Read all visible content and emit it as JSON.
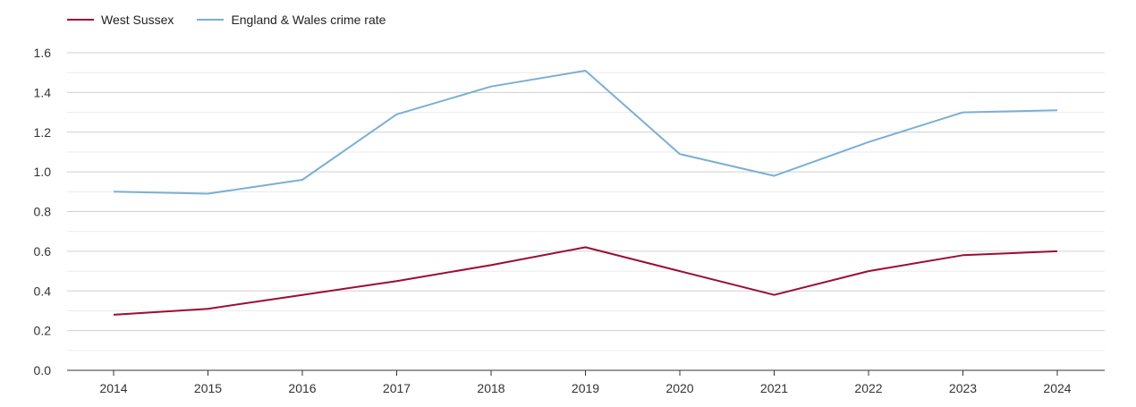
{
  "chart_data": {
    "type": "line",
    "title": "",
    "xlabel": "",
    "ylabel": "",
    "categories": [
      "2014",
      "2015",
      "2016",
      "2017",
      "2018",
      "2019",
      "2020",
      "2021",
      "2022",
      "2023",
      "2024"
    ],
    "ylim": [
      0,
      1.6
    ],
    "yticks": [
      "0.0",
      "0.2",
      "0.4",
      "0.6",
      "0.8",
      "1.0",
      "1.2",
      "1.4",
      "1.6"
    ],
    "grid": true,
    "legend_position": "top-left",
    "series": [
      {
        "name": "West Sussex",
        "color": "#9b0d36",
        "values": [
          0.28,
          0.31,
          0.38,
          0.45,
          0.53,
          0.62,
          0.5,
          0.38,
          0.5,
          0.58,
          0.6
        ]
      },
      {
        "name": "England & Wales crime rate",
        "color": "#7bafd4",
        "values": [
          0.9,
          0.89,
          0.96,
          1.29,
          1.43,
          1.51,
          1.09,
          0.98,
          1.15,
          1.3,
          1.31
        ]
      }
    ]
  }
}
